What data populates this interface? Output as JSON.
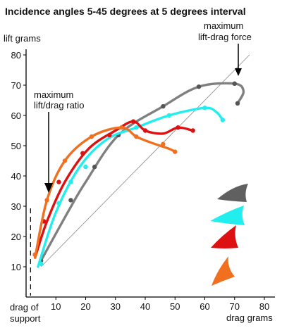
{
  "chart_data": {
    "type": "line",
    "title": "Incidence angles 5-45 degrees at 5 degrees interval",
    "ylabel": "lift grams",
    "xlabel": "drag grams",
    "xlim": [
      0,
      80
    ],
    "ylim": [
      0,
      85
    ],
    "x_ticks": [
      "10",
      "20",
      "30",
      "40",
      "50",
      "60",
      "70",
      "80"
    ],
    "y_ticks": [
      "10",
      "20",
      "30",
      "40",
      "50",
      "60",
      "70",
      "80"
    ],
    "annotations": {
      "max_lift_drag_force": [
        "maximum",
        "lift-drag force"
      ],
      "max_lift_drag_ratio": [
        "maximum",
        "lift/drag ratio"
      ],
      "drag_of_support": [
        "drag of",
        "support"
      ]
    },
    "drag_of_support_x": 1.5,
    "diagonal": [
      [
        5,
        10
      ],
      [
        75,
        80
      ]
    ],
    "series": [
      {
        "color": "#808080",
        "points": [
          [
            5,
            12
          ],
          [
            14,
            28
          ],
          [
            20,
            38
          ],
          [
            31,
            53.5
          ],
          [
            46,
            63
          ],
          [
            58,
            69.5
          ],
          [
            70,
            70.5
          ],
          [
            73,
            68
          ],
          [
            71,
            64
          ]
        ],
        "markers": [
          [
            5,
            12
          ],
          [
            15,
            32
          ],
          [
            23,
            43
          ],
          [
            31,
            53.5
          ],
          [
            46,
            63
          ],
          [
            58,
            69.5
          ],
          [
            70,
            70.5
          ],
          [
            71,
            64
          ]
        ]
      },
      {
        "color": "#22eeee",
        "points": [
          [
            4,
            10
          ],
          [
            10,
            28
          ],
          [
            18,
            43
          ],
          [
            27,
            52
          ],
          [
            37,
            56
          ],
          [
            48,
            60
          ],
          [
            60,
            62.5
          ],
          [
            64,
            61
          ],
          [
            66,
            58.5
          ]
        ],
        "markers": [
          [
            5,
            11
          ],
          [
            11,
            31
          ],
          [
            15,
            38
          ],
          [
            20,
            43
          ],
          [
            37,
            56
          ],
          [
            48,
            60
          ],
          [
            60,
            62.5
          ],
          [
            66,
            58.5
          ]
        ]
      },
      {
        "color": "#dd1111",
        "points": [
          [
            3,
            13
          ],
          [
            7,
            25
          ],
          [
            13,
            38
          ],
          [
            21,
            49
          ],
          [
            30,
            55
          ],
          [
            36,
            58
          ],
          [
            40,
            55
          ],
          [
            46,
            54
          ],
          [
            51,
            56
          ],
          [
            56,
            55
          ]
        ],
        "markers": [
          [
            3,
            14
          ],
          [
            6,
            25
          ],
          [
            11,
            38
          ],
          [
            19,
            47.5
          ],
          [
            28,
            53.5
          ],
          [
            36,
            58
          ],
          [
            40,
            55
          ],
          [
            51,
            56
          ],
          [
            56,
            55
          ]
        ]
      },
      {
        "color": "#f07020",
        "points": [
          [
            3,
            13
          ],
          [
            7,
            32
          ],
          [
            13,
            45
          ],
          [
            22,
            53
          ],
          [
            32,
            56
          ],
          [
            37,
            53
          ],
          [
            42,
            51
          ],
          [
            48,
            49
          ],
          [
            50,
            48
          ]
        ],
        "markers": [
          [
            3,
            14
          ],
          [
            7,
            32
          ],
          [
            13,
            45
          ],
          [
            22,
            53
          ],
          [
            32,
            56
          ],
          [
            37,
            53
          ],
          [
            46,
            50.5
          ],
          [
            50,
            48
          ]
        ]
      }
    ],
    "wing_icons": [
      "#606060",
      "#22eeee",
      "#dd1111",
      "#f07020"
    ]
  }
}
